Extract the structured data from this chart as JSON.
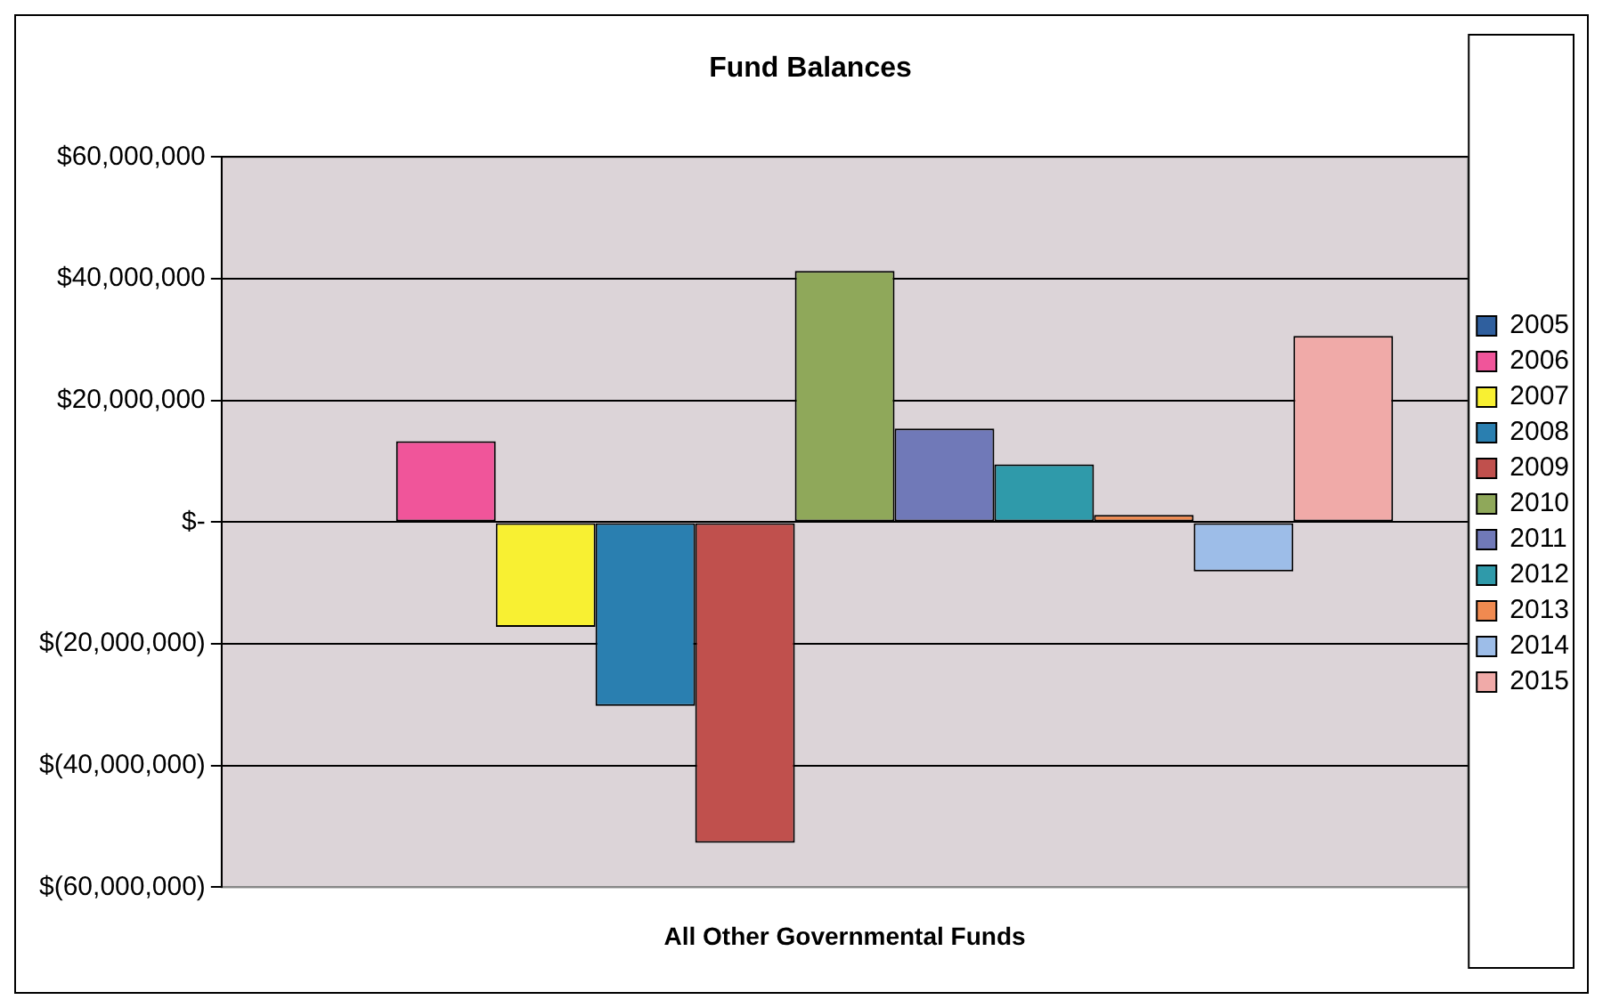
{
  "chart_data": {
    "type": "bar",
    "title": "Fund Balances",
    "categories": [
      "All Other Governmental Funds"
    ],
    "series": [
      {
        "name": "2005",
        "color": "#2f5f9e",
        "values": [
          null
        ]
      },
      {
        "name": "2006",
        "color": "#f0559a",
        "values": [
          13300000.0
        ]
      },
      {
        "name": "2007",
        "color": "#f8f032",
        "values": [
          -17200000.0
        ]
      },
      {
        "name": "2008",
        "color": "#2a7fb0",
        "values": [
          -30200000.0
        ]
      },
      {
        "name": "2009",
        "color": "#c0504d",
        "values": [
          -52700000.0
        ]
      },
      {
        "name": "2010",
        "color": "#8fa85a",
        "values": [
          41300000.0
        ]
      },
      {
        "name": "2011",
        "color": "#7079b8",
        "values": [
          15400000.0
        ]
      },
      {
        "name": "2012",
        "color": "#2f9aaa",
        "values": [
          9500000.0
        ]
      },
      {
        "name": "2013",
        "color": "#f08a50",
        "values": [
          1200000.0
        ]
      },
      {
        "name": "2014",
        "color": "#9dbde8",
        "values": [
          -8100000.0
        ]
      },
      {
        "name": "2015",
        "color": "#f0aaa8",
        "values": [
          30600000.0
        ]
      }
    ],
    "ylim": [
      -60000000,
      60000000
    ],
    "yticks": [
      {
        "value": -60000000,
        "label": "$(60,000,000)"
      },
      {
        "value": -40000000,
        "label": "$(40,000,000)"
      },
      {
        "value": -20000000,
        "label": "$(20,000,000)"
      },
      {
        "value": 0,
        "label": "$-"
      },
      {
        "value": 20000000,
        "label": "$20,000,000"
      },
      {
        "value": 40000000,
        "label": "$40,000,000"
      },
      {
        "value": 60000000,
        "label": "$60,000,000"
      }
    ],
    "grid": "y",
    "legend": "right"
  }
}
